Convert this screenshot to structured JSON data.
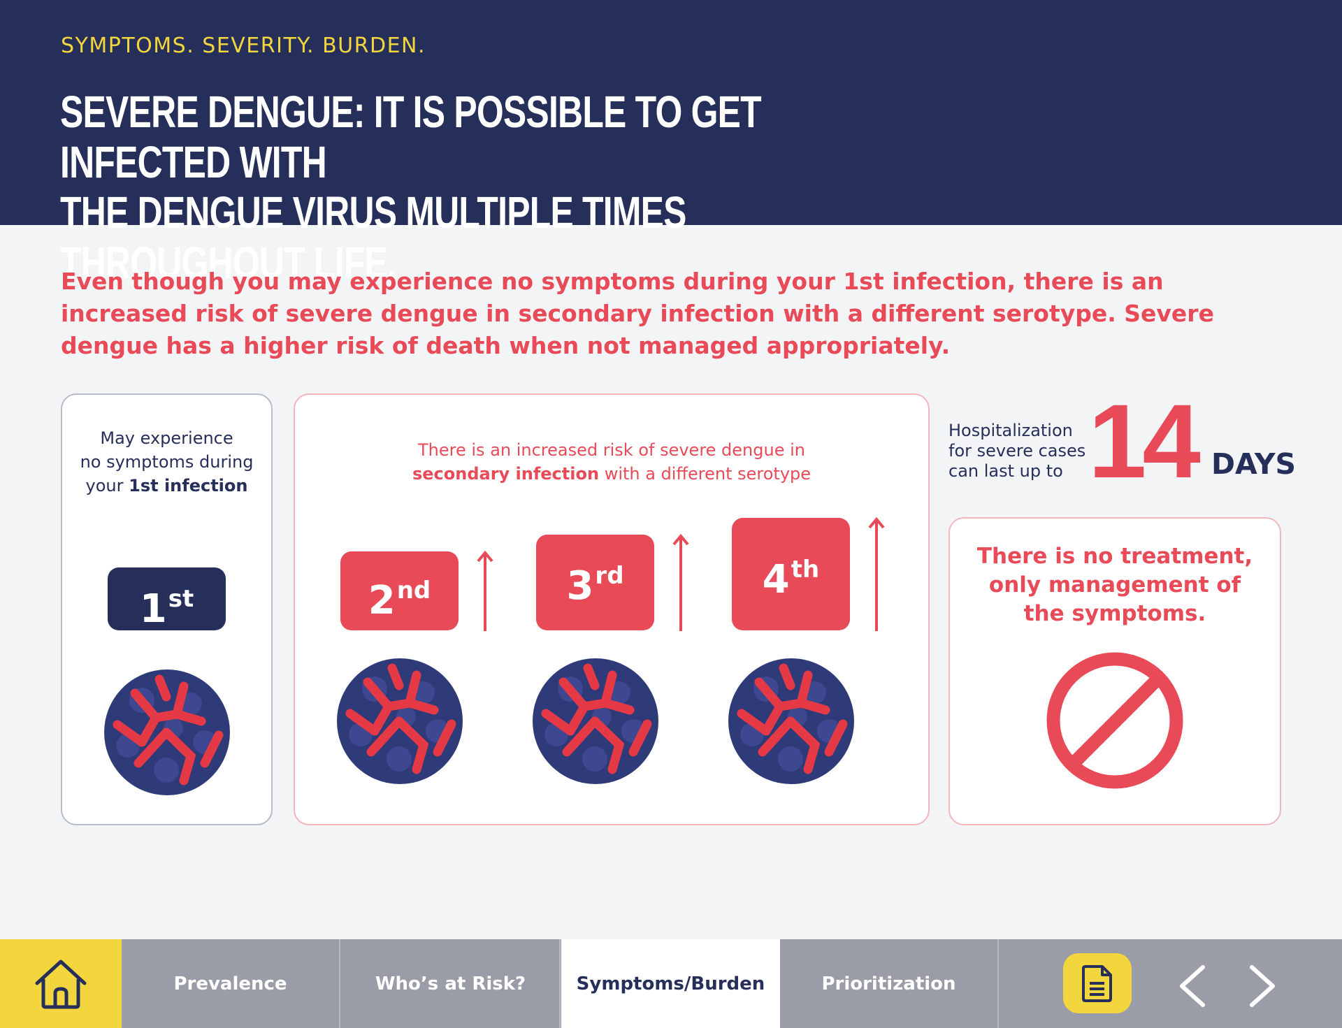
{
  "header": {
    "eyebrow": "SYMPTOMS. SEVERITY. BURDEN.",
    "headline_line1": "SEVERE DENGUE: IT IS POSSIBLE TO GET INFECTED WITH",
    "headline_line2": "THE DENGUE VIRUS MULTIPLE TIMES THROUGHOUT LIFE."
  },
  "intro": "Even though you may experience no symptoms during your 1st infection, there is an increased risk of severe dengue in secondary infection with a different serotype. Severe dengue has a higher risk of death when not managed appropriately.",
  "first_card": {
    "line1": "May experience",
    "line2": "no symptoms during",
    "line3_prefix": "your ",
    "line3_bold": "1st infection",
    "badge_num": "1",
    "badge_sup": "st"
  },
  "mid_card": {
    "line1": "There is an increased risk of severe dengue in",
    "line2_bold": "secondary infection",
    "line2_rest": " with a different serotype",
    "badges": [
      {
        "num": "2",
        "sup": "nd"
      },
      {
        "num": "3",
        "sup": "rd"
      },
      {
        "num": "4",
        "sup": "th"
      }
    ]
  },
  "hospitalization": {
    "line1": "Hospitalization",
    "line2": "for severe cases",
    "line3": "can last up to",
    "number": "14",
    "unit": "DAYS"
  },
  "treatment": {
    "line1": "There is no treatment,",
    "line2": "only management of",
    "line3": "the symptoms."
  },
  "footer": {
    "tabs": [
      "Prevalence",
      "Who’s at Risk?",
      "Symptoms/Burden",
      "Prioritization"
    ],
    "active_tab": "Symptoms/Burden"
  },
  "icons": {
    "home": "home-icon",
    "document": "document-icon",
    "prev": "chevron-left-icon",
    "next": "chevron-right-icon",
    "no_entry": "no-entry-icon",
    "virus": "virus-icon"
  },
  "colors": {
    "navy": "#262f5a",
    "red": "#e84a57",
    "yellow": "#f3d53d",
    "gray_nav": "#9a9ca8",
    "background": "#f3f4f6"
  }
}
